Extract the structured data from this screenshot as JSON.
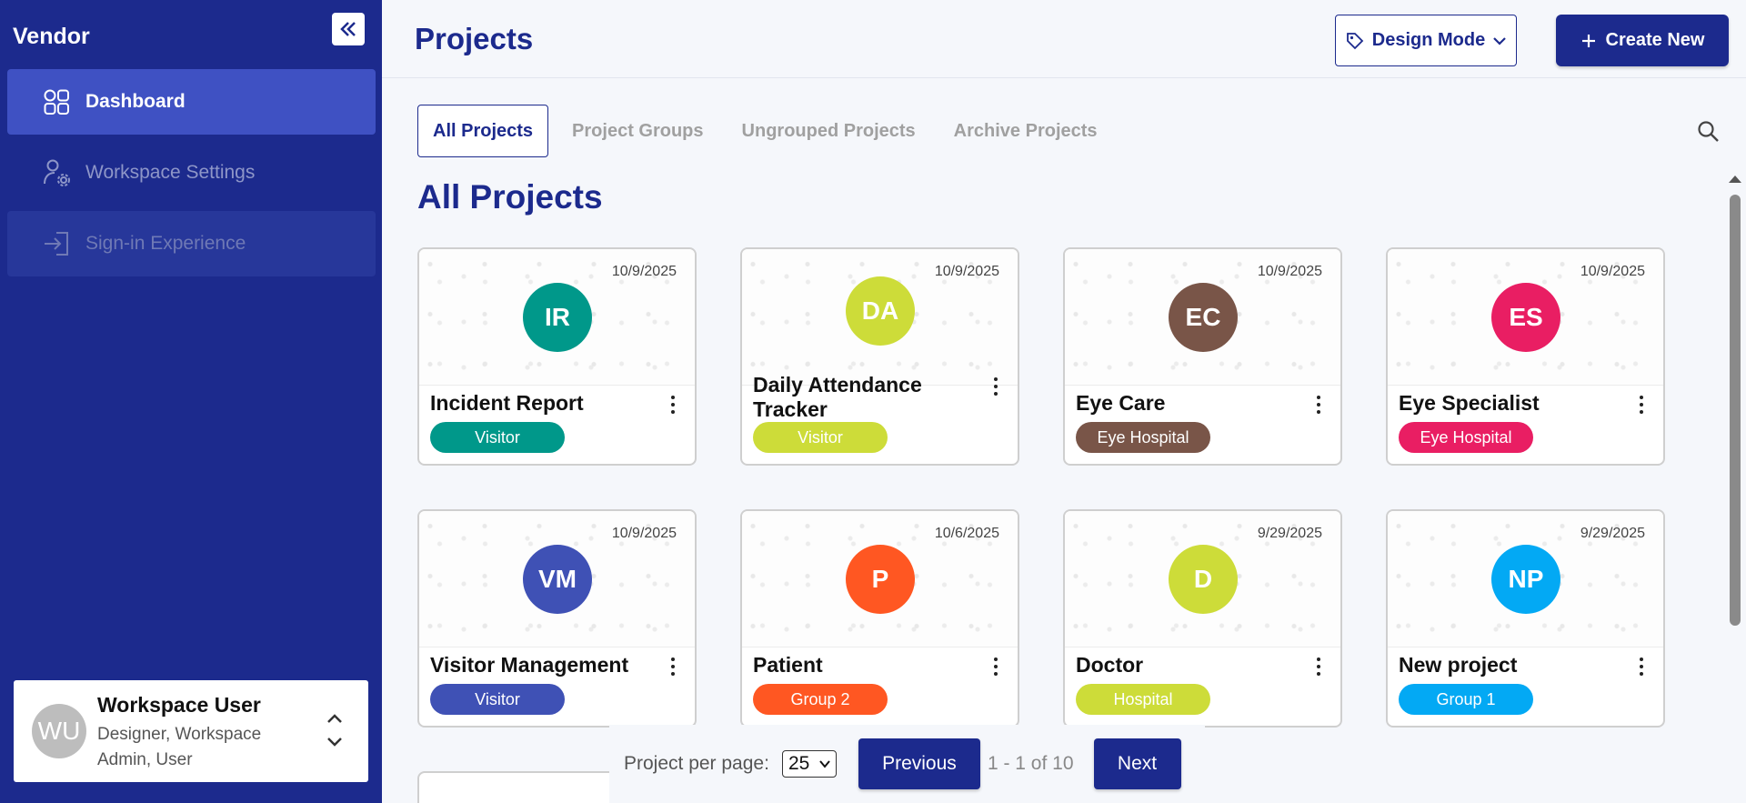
{
  "sidebar": {
    "brand": "Vendor",
    "items": [
      {
        "label": "Dashboard",
        "icon": "grid-icon"
      },
      {
        "label": "Workspace Settings",
        "icon": "user-settings-icon"
      },
      {
        "label": "Sign-in Experience",
        "icon": "sign-in-icon"
      }
    ],
    "user": {
      "initials": "WU",
      "name": "Workspace User",
      "roles": "Designer, Workspace Admin, User"
    }
  },
  "header": {
    "title": "Projects",
    "design_mode_label": "Design Mode",
    "create_new_label": "Create New"
  },
  "tabs": [
    {
      "label": "All Projects",
      "active": true
    },
    {
      "label": "Project Groups",
      "active": false
    },
    {
      "label": "Ungrouped Projects",
      "active": false
    },
    {
      "label": "Archive Projects",
      "active": false
    }
  ],
  "section_title": "All Projects",
  "projects": [
    {
      "initials": "IR",
      "title": "Incident Report",
      "date": "10/9/2025",
      "tag": "Visitor",
      "color": "#00988a"
    },
    {
      "initials": "DA",
      "title": "Daily Attendance Tracker",
      "date": "10/9/2025",
      "tag": "Visitor",
      "color": "#cddc39"
    },
    {
      "initials": "EC",
      "title": "Eye Care",
      "date": "10/9/2025",
      "tag": "Eye Hospital",
      "color": "#795548"
    },
    {
      "initials": "ES",
      "title": "Eye Specialist",
      "date": "10/9/2025",
      "tag": "Eye Hospital",
      "color": "#e91e63"
    },
    {
      "initials": "VM",
      "title": "Visitor Management",
      "date": "10/9/2025",
      "tag": "Visitor",
      "color": "#3f51b5"
    },
    {
      "initials": "P",
      "title": "Patient",
      "date": "10/6/2025",
      "tag": "Group 2",
      "color": "#ff5722"
    },
    {
      "initials": "D",
      "title": "Doctor",
      "date": "9/29/2025",
      "tag": "Hospital",
      "color": "#cddc39"
    },
    {
      "initials": "NP",
      "title": "New project",
      "date": "9/29/2025",
      "tag": "Group 1",
      "color": "#03a9f4"
    }
  ],
  "pagination": {
    "per_page_label": "Project per page:",
    "per_page_value": "25",
    "previous_label": "Previous",
    "range_text": "1 - 1 of 10",
    "next_label": "Next"
  }
}
